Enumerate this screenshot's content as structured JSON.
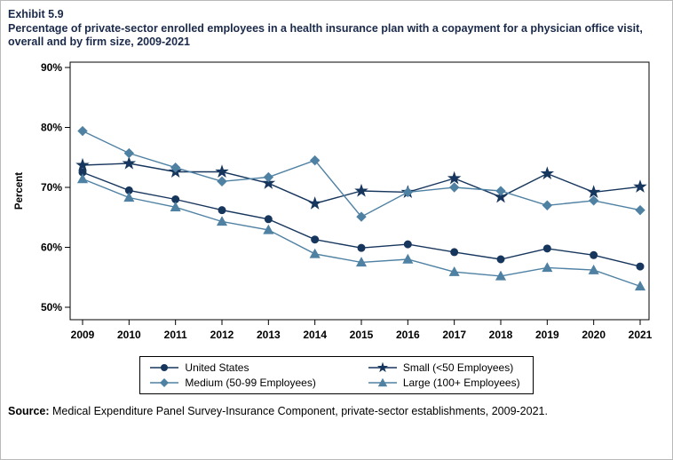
{
  "header": {
    "exhibit": "Exhibit 5.9",
    "title": "Percentage of private-sector enrolled employees in a health insurance plan with a copayment for a physician office visit, overall and by firm size, 2009-2021"
  },
  "source": {
    "label": "Source:",
    "text": " Medical Expenditure Panel Survey-Insurance Component, private-sector establishments, 2009-2021."
  },
  "chart_data": {
    "type": "line",
    "title": "Percentage of private-sector enrolled employees in a health insurance plan with a copayment for a physician office visit, overall and by firm size, 2009-2021",
    "ylabel": "Percent",
    "ylim": [
      50,
      90
    ],
    "yticks": [
      50,
      60,
      70,
      80,
      90
    ],
    "ytick_suffix": "%",
    "grid": false,
    "legend_position": "bottom",
    "x": [
      2009,
      2010,
      2011,
      2012,
      2013,
      2014,
      2015,
      2016,
      2017,
      2018,
      2019,
      2020,
      2021
    ],
    "series": [
      {
        "name": "United States",
        "marker": "circle",
        "color": "#17365d",
        "values": [
          72.5,
          69.5,
          68.0,
          66.2,
          64.7,
          61.3,
          59.9,
          60.5,
          59.2,
          58.0,
          59.8,
          58.7,
          56.8
        ]
      },
      {
        "name": "Small (<50 Employees)",
        "marker": "star",
        "color": "#17365d",
        "values": [
          73.7,
          74.0,
          72.6,
          72.6,
          70.7,
          67.3,
          69.4,
          69.2,
          71.5,
          68.4,
          72.3,
          69.2,
          70.1
        ]
      },
      {
        "name": "Medium (50-99 Employees)",
        "marker": "diamond",
        "color": "#4f81a3",
        "values": [
          79.4,
          75.7,
          73.3,
          71.0,
          71.7,
          74.5,
          65.1,
          69.2,
          70.0,
          69.4,
          67.0,
          67.8,
          66.2
        ]
      },
      {
        "name": "Large (100+ Employees)",
        "marker": "triangle",
        "color": "#4f81a3",
        "values": [
          71.4,
          68.3,
          66.7,
          64.3,
          62.9,
          58.9,
          57.5,
          58.0,
          55.9,
          55.2,
          56.6,
          56.2,
          53.5
        ]
      }
    ]
  }
}
